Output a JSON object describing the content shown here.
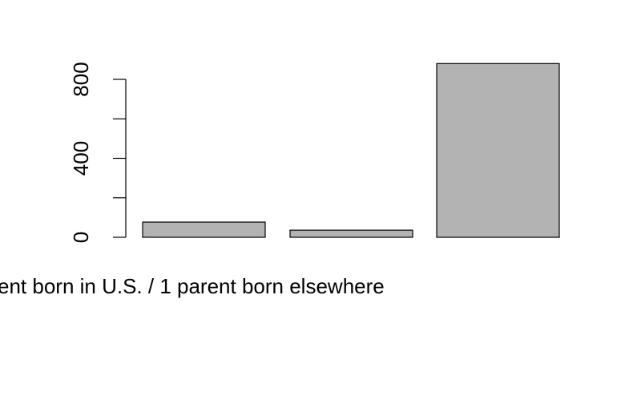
{
  "chart_data": {
    "type": "bar",
    "categories": [
      "",
      "",
      ""
    ],
    "values": [
      77,
      36,
      880
    ],
    "visible_category_label": "ent born in U.S. / 1 parent born elsewhere",
    "ylim": [
      0,
      880
    ],
    "yticks": [
      0,
      200,
      400,
      600,
      800
    ],
    "ytick_labels": [
      "0",
      "",
      "400",
      "",
      "800"
    ],
    "grid": false,
    "bar_fill": "#b3b3b3",
    "bar_stroke": "#000000"
  }
}
